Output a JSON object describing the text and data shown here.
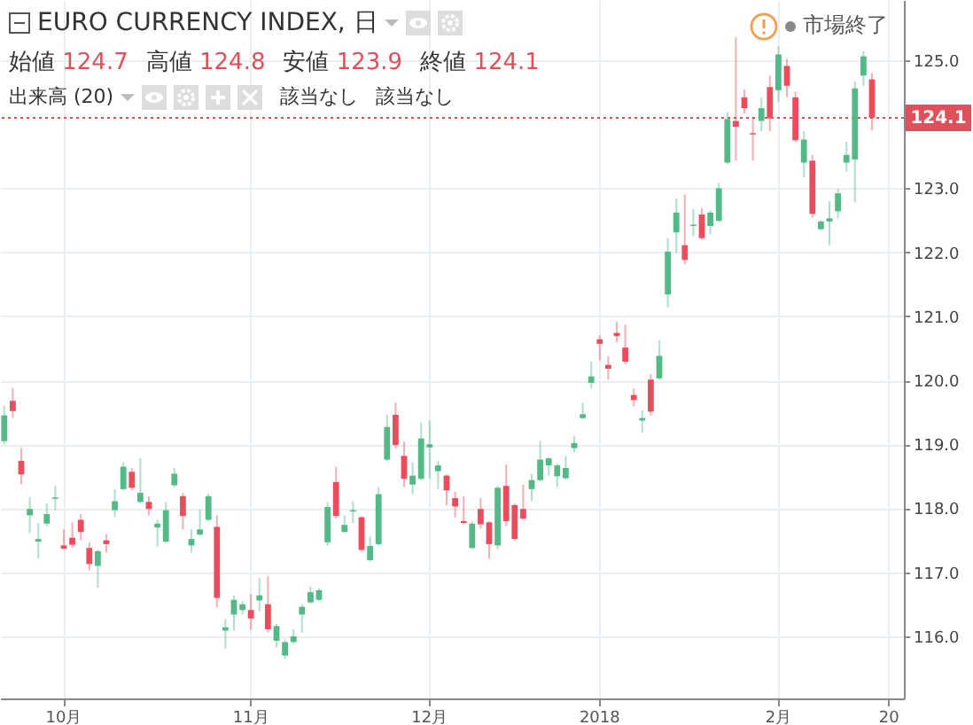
{
  "chart_data": {
    "type": "candlestick",
    "title": "EURO CURRENCY INDEX, 日",
    "annotations": [
      "始値 124.7",
      "高値 124.8",
      "安値 123.9",
      "終値 124.1",
      "出来高 (20)",
      "該当なし",
      "該当なし",
      "市場終了"
    ],
    "categories": [
      null,
      null,
      null,
      null,
      null,
      null,
      null,
      "10月",
      null,
      null,
      null,
      null,
      null,
      null,
      null,
      null,
      null,
      null,
      null,
      null,
      null,
      null,
      null,
      null,
      null,
      null,
      null,
      null,
      null,
      "11月",
      null,
      null,
      null,
      null,
      null,
      null,
      null,
      null,
      null,
      null,
      null,
      null,
      null,
      null,
      null,
      null,
      null,
      null,
      null,
      null,
      "12月",
      null,
      null,
      null,
      null,
      null,
      null,
      null,
      null,
      null,
      null,
      null,
      null,
      null,
      null,
      null,
      null,
      null,
      null,
      null,
      "2018",
      null,
      null,
      null,
      null,
      null,
      null,
      null,
      null,
      null,
      null,
      null,
      null,
      null,
      null,
      null,
      null,
      null,
      null,
      null,
      null,
      "2月",
      null,
      null,
      null,
      null,
      null,
      null,
      null,
      null,
      null,
      null,
      null,
      null,
      "20"
    ],
    "ohlc": [
      [
        119.05,
        119.6,
        119.0,
        119.45
      ],
      [
        119.68,
        119.88,
        119.41,
        119.52
      ],
      [
        118.74,
        118.94,
        118.38,
        118.53
      ],
      [
        117.89,
        118.17,
        117.61,
        117.99
      ],
      [
        117.48,
        117.77,
        117.22,
        117.52
      ],
      [
        117.76,
        118.08,
        117.72,
        117.91
      ],
      [
        118.15,
        118.35,
        117.97,
        118.17
      ],
      [
        117.42,
        117.67,
        117.35,
        117.37
      ],
      [
        117.54,
        117.78,
        117.38,
        117.43
      ],
      [
        117.82,
        117.91,
        117.5,
        117.63
      ],
      [
        117.38,
        117.47,
        117.03,
        117.13
      ],
      [
        117.1,
        117.35,
        116.76,
        117.33
      ],
      [
        117.5,
        117.6,
        117.31,
        117.44
      ],
      [
        117.97,
        118.3,
        117.86,
        118.11
      ],
      [
        118.3,
        118.72,
        118.28,
        118.65
      ],
      [
        118.57,
        118.63,
        118.28,
        118.32
      ],
      [
        118.1,
        118.78,
        118.08,
        118.24
      ],
      [
        118.1,
        118.19,
        117.89,
        117.99
      ],
      [
        117.7,
        117.82,
        117.4,
        117.76
      ],
      [
        117.48,
        118.1,
        117.46,
        117.97
      ],
      [
        118.36,
        118.63,
        118.33,
        118.54
      ],
      [
        118.19,
        118.24,
        117.67,
        117.88
      ],
      [
        117.42,
        117.67,
        117.31,
        117.52
      ],
      [
        117.59,
        117.98,
        117.57,
        117.67
      ],
      [
        117.82,
        118.23,
        117.8,
        118.19
      ],
      [
        117.71,
        117.89,
        116.45,
        116.6
      ],
      [
        116.09,
        116.27,
        115.81,
        116.14
      ],
      [
        116.34,
        116.64,
        116.09,
        116.57
      ],
      [
        116.41,
        116.55,
        116.34,
        116.5
      ],
      [
        116.41,
        116.66,
        116.11,
        116.28
      ],
      [
        116.56,
        116.91,
        116.39,
        116.64
      ],
      [
        116.5,
        116.94,
        116.06,
        116.11
      ],
      [
        115.93,
        116.2,
        115.83,
        116.16
      ],
      [
        115.7,
        115.95,
        115.65,
        115.91
      ],
      [
        115.91,
        116.11,
        115.88,
        116.0
      ],
      [
        116.34,
        116.5,
        116.06,
        116.46
      ],
      [
        116.53,
        116.78,
        116.51,
        116.69
      ],
      [
        116.57,
        116.75,
        116.55,
        116.72
      ],
      [
        117.47,
        118.1,
        117.42,
        118.02
      ],
      [
        118.41,
        118.65,
        117.84,
        117.88
      ],
      [
        117.63,
        117.89,
        117.62,
        117.74
      ],
      [
        117.95,
        118.11,
        117.77,
        117.97
      ],
      [
        117.86,
        117.88,
        117.33,
        117.35
      ],
      [
        117.19,
        117.56,
        117.17,
        117.41
      ],
      [
        117.44,
        118.33,
        117.42,
        118.22
      ],
      [
        118.76,
        119.46,
        118.74,
        119.27
      ],
      [
        119.46,
        119.65,
        118.94,
        118.99
      ],
      [
        118.82,
        119.04,
        118.33,
        118.46
      ],
      [
        118.37,
        118.72,
        118.22,
        118.51
      ],
      [
        118.46,
        119.34,
        118.44,
        119.09
      ],
      [
        118.95,
        119.37,
        118.46,
        119.0
      ],
      [
        118.58,
        118.74,
        118.3,
        118.67
      ],
      [
        118.51,
        118.53,
        118.05,
        118.28
      ],
      [
        118.16,
        118.26,
        117.86,
        118.03
      ],
      [
        117.8,
        118.19,
        117.75,
        117.77
      ],
      [
        117.38,
        117.8,
        117.36,
        117.76
      ],
      [
        117.99,
        118.16,
        117.68,
        117.75
      ],
      [
        117.78,
        117.8,
        117.21,
        117.44
      ],
      [
        117.42,
        118.35,
        117.36,
        118.32
      ],
      [
        118.35,
        118.69,
        117.72,
        117.8
      ],
      [
        118.05,
        118.07,
        117.5,
        117.52
      ],
      [
        117.99,
        118.37,
        117.82,
        117.84
      ],
      [
        118.3,
        118.54,
        118.11,
        118.44
      ],
      [
        118.44,
        119.05,
        118.42,
        118.76
      ],
      [
        118.67,
        118.8,
        118.51,
        118.78
      ],
      [
        118.5,
        118.7,
        118.33,
        118.67
      ],
      [
        118.47,
        118.82,
        118.45,
        118.63
      ],
      [
        118.94,
        119.13,
        118.88,
        119.02
      ],
      [
        119.41,
        119.65,
        119.39,
        119.47
      ],
      [
        119.96,
        120.29,
        119.87,
        120.06
      ],
      [
        120.64,
        120.7,
        120.31,
        120.57
      ],
      [
        120.24,
        120.38,
        120.01,
        120.18
      ],
      [
        120.74,
        120.91,
        120.59,
        120.69
      ],
      [
        120.51,
        120.87,
        120.25,
        120.29
      ],
      [
        119.77,
        119.87,
        119.59,
        119.69
      ],
      [
        119.37,
        119.53,
        119.18,
        119.41
      ],
      [
        120.01,
        120.1,
        119.45,
        119.51
      ],
      [
        120.03,
        120.62,
        120.01,
        120.38
      ],
      [
        121.34,
        122.22,
        121.14,
        122.01
      ],
      [
        122.31,
        122.84,
        121.99,
        122.62
      ],
      [
        122.11,
        122.9,
        121.81,
        121.88
      ],
      [
        122.41,
        122.67,
        122.25,
        122.43
      ],
      [
        122.59,
        122.69,
        122.2,
        122.22
      ],
      [
        122.41,
        122.65,
        122.28,
        122.62
      ],
      [
        122.49,
        123.08,
        122.47,
        123.0
      ],
      [
        123.4,
        124.19,
        123.38,
        124.08
      ],
      [
        124.05,
        125.36,
        123.43,
        123.96
      ],
      [
        124.42,
        124.54,
        124.17,
        124.25
      ],
      [
        123.86,
        124.09,
        123.43,
        123.84
      ],
      [
        124.05,
        124.42,
        123.89,
        124.25
      ],
      [
        124.58,
        124.76,
        123.89,
        124.09
      ],
      [
        124.53,
        125.22,
        124.35,
        125.09
      ],
      [
        124.91,
        125.02,
        124.42,
        124.6
      ],
      [
        124.42,
        124.51,
        123.72,
        123.75
      ],
      [
        123.4,
        123.89,
        123.17,
        123.76
      ],
      [
        123.43,
        123.52,
        122.54,
        122.6
      ],
      [
        122.36,
        122.5,
        122.34,
        122.48
      ],
      [
        122.48,
        122.8,
        122.11,
        122.53
      ],
      [
        122.64,
        122.99,
        122.53,
        122.92
      ],
      [
        123.4,
        123.73,
        123.26,
        123.52
      ],
      [
        123.45,
        124.67,
        122.78,
        124.56
      ],
      [
        124.76,
        125.14,
        124.6,
        125.06
      ],
      [
        124.7,
        124.8,
        123.9,
        124.1
      ],
      null,
      null
    ],
    "ylim": [
      115.03,
      125.94
    ],
    "yticks": [
      {
        "value": 116,
        "label": "116.0"
      },
      {
        "value": 117,
        "label": "117.0"
      },
      {
        "value": 118,
        "label": "118.0"
      },
      {
        "value": 119,
        "label": "119.0"
      },
      {
        "value": 120,
        "label": "120.0"
      },
      {
        "value": 121,
        "label": "121.0"
      },
      {
        "value": 122,
        "label": "122.0"
      },
      {
        "value": 123,
        "label": "123.0"
      },
      {
        "value": 125,
        "label": "125.0"
      }
    ],
    "ref_lines": [
      {
        "axis": "y",
        "value": 124.1,
        "label": "124.1",
        "color": "#e0505a",
        "line_style": "dotted"
      }
    ],
    "grid": true
  }
}
